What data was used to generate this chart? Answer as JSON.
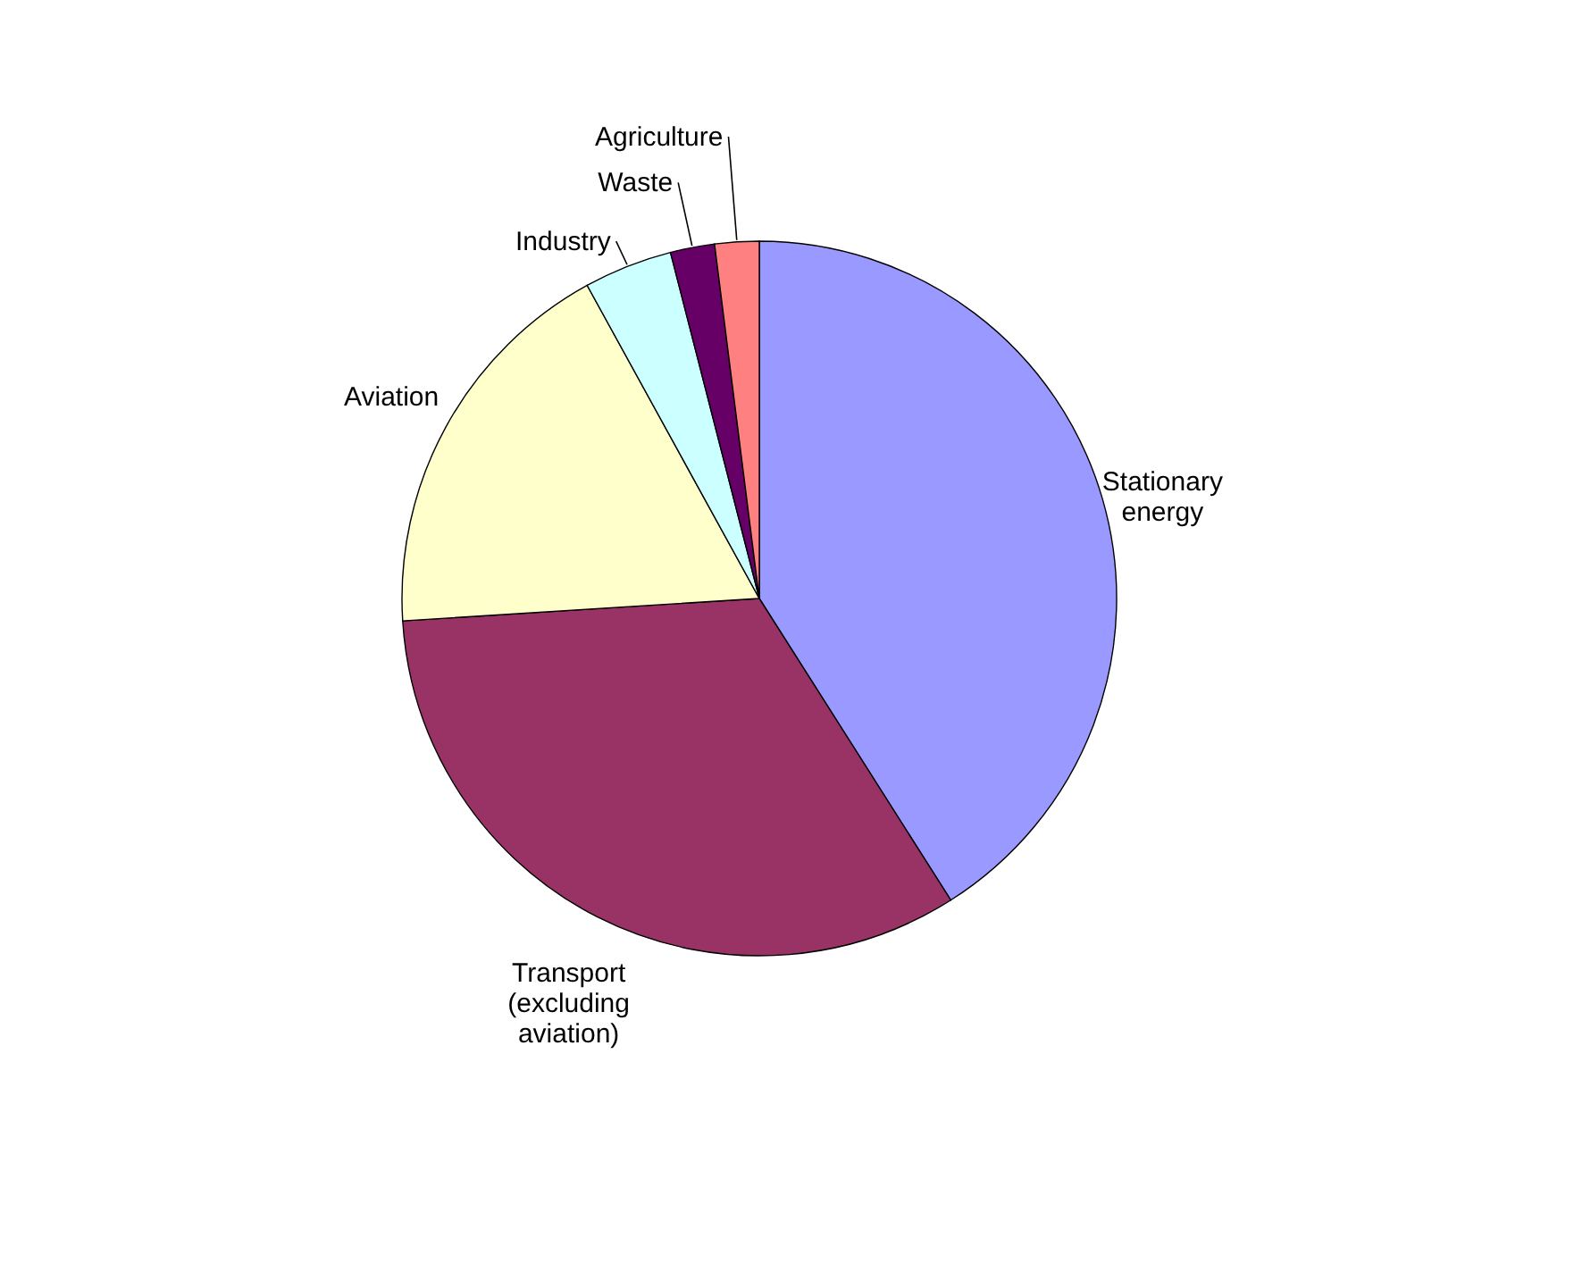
{
  "chart_data": {
    "type": "pie",
    "categories": [
      "Stationary energy",
      "Transport (excluding aviation)",
      "Aviation",
      "Industry",
      "Waste",
      "Agriculture"
    ],
    "values": [
      41,
      33,
      18,
      4,
      2,
      2
    ],
    "colors": [
      "#9999ff",
      "#993366",
      "#ffffcc",
      "#ccffff",
      "#660066",
      "#ff8080"
    ],
    "legend": false
  }
}
